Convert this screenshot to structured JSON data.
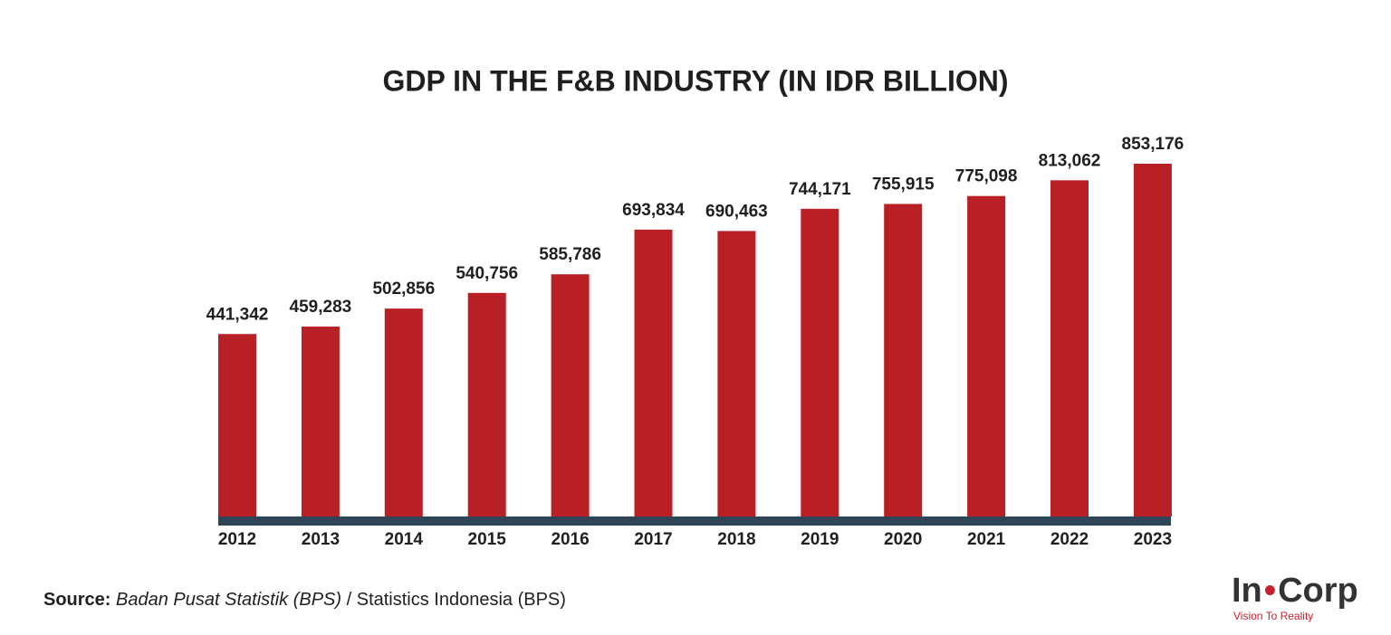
{
  "chart_data": {
    "type": "bar",
    "title": "GDP IN THE F&B INDUSTRY (IN IDR BILLION)",
    "categories": [
      "2012",
      "2013",
      "2014",
      "2015",
      "2016",
      "2017",
      "2018",
      "2019",
      "2020",
      "2021",
      "2022",
      "2023"
    ],
    "values": [
      441342,
      459283,
      502856,
      540756,
      585786,
      693834,
      690463,
      744171,
      755915,
      775098,
      813062,
      853176
    ],
    "value_labels": [
      "441,342",
      "459,283",
      "502,856",
      "540,756",
      "585,786",
      "693,834",
      "690,463",
      "744,171",
      "755,915",
      "775,098",
      "813,062",
      "853,176"
    ],
    "color": "#b92025",
    "axis_color": "#2e4457"
  },
  "source": {
    "label": "Source:",
    "italic": "Badan Pusat Statistik (BPS)",
    "text": "/ Statistics Indonesia (BPS)"
  },
  "logo": {
    "left": "In",
    "right": "Corp",
    "tagline": "Vision To Reality"
  }
}
